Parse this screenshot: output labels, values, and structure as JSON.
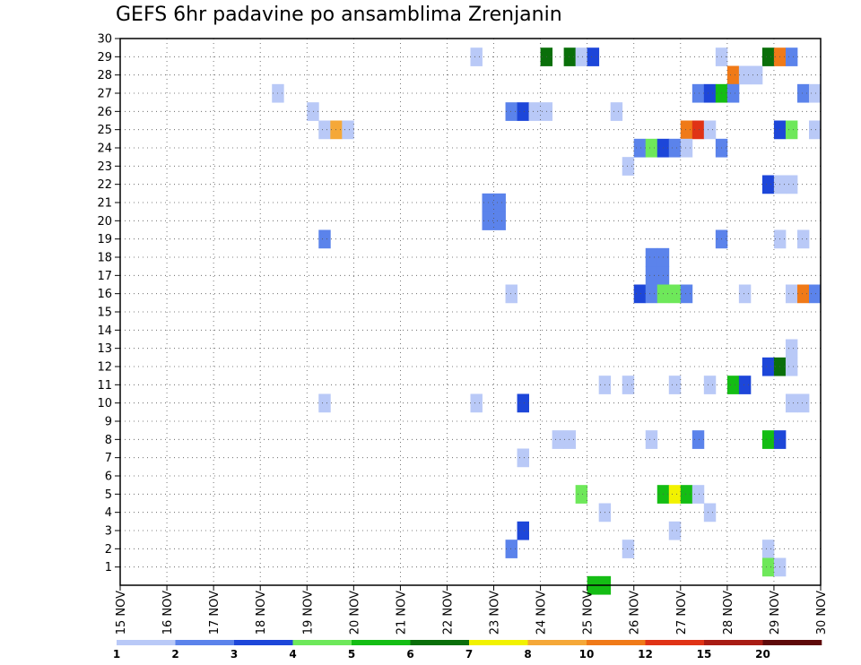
{
  "chart_data": {
    "type": "heatmap",
    "title": "GEFS 6hr padavine po ansamblima Zrenjanin",
    "xlabel": "",
    "ylabel": "",
    "x_tick_labels": [
      "15 NOV",
      "16 NOV",
      "17 NOV",
      "18 NOV",
      "19 NOV",
      "20 NOV",
      "21 NOV",
      "22 NOV",
      "23 NOV",
      "24 NOV",
      "25 NOV",
      "26 NOV",
      "27 NOV",
      "28 NOV",
      "29 NOV",
      "30 NOV"
    ],
    "y_tick_labels": [
      "1",
      "2",
      "3",
      "4",
      "5",
      "6",
      "7",
      "8",
      "9",
      "10",
      "11",
      "12",
      "13",
      "14",
      "15",
      "16",
      "17",
      "18",
      "19",
      "20",
      "21",
      "22",
      "23",
      "24",
      "25",
      "26",
      "27",
      "28",
      "29",
      "30"
    ],
    "x_range_days": [
      15,
      30
    ],
    "y_range_members": [
      0,
      30
    ],
    "time_step_hours": 6,
    "grid": true,
    "colorbar": {
      "labels": [
        "1",
        "2",
        "3",
        "4",
        "5",
        "6",
        "7",
        "8",
        "10",
        "12",
        "15",
        "20"
      ],
      "colors": [
        "#b9c9f7",
        "#5b83eb",
        "#1d46d9",
        "#6ee85a",
        "#14bd14",
        "#0a6f0a",
        "#f2f200",
        "#f5a838",
        "#f07a18",
        "#e03316",
        "#a81c14",
        "#5e0a0a"
      ]
    },
    "cells": [
      {
        "member": 29,
        "day": 22.5,
        "cls": 0
      },
      {
        "member": 29,
        "day": 24.0,
        "cls": 5
      },
      {
        "member": 29,
        "day": 24.5,
        "cls": 5
      },
      {
        "member": 29,
        "day": 24.75,
        "cls": 0
      },
      {
        "member": 29,
        "day": 25.0,
        "cls": 2
      },
      {
        "member": 29,
        "day": 27.75,
        "cls": 0
      },
      {
        "member": 29,
        "day": 28.75,
        "cls": 5
      },
      {
        "member": 29,
        "day": 29.0,
        "cls": 8
      },
      {
        "member": 29,
        "day": 29.25,
        "cls": 1
      },
      {
        "member": 28,
        "day": 28.0,
        "cls": 8
      },
      {
        "member": 28,
        "day": 28.25,
        "cls": 0
      },
      {
        "member": 28,
        "day": 28.5,
        "cls": 0
      },
      {
        "member": 27,
        "day": 18.25,
        "cls": 0
      },
      {
        "member": 27,
        "day": 27.25,
        "cls": 1
      },
      {
        "member": 27,
        "day": 27.5,
        "cls": 2
      },
      {
        "member": 27,
        "day": 27.75,
        "cls": 4
      },
      {
        "member": 27,
        "day": 28.0,
        "cls": 1
      },
      {
        "member": 27,
        "day": 29.5,
        "cls": 1
      },
      {
        "member": 27,
        "day": 29.75,
        "cls": 0
      },
      {
        "member": 26,
        "day": 19.0,
        "cls": 0
      },
      {
        "member": 26,
        "day": 23.25,
        "cls": 1
      },
      {
        "member": 26,
        "day": 23.5,
        "cls": 2
      },
      {
        "member": 26,
        "day": 23.75,
        "cls": 0
      },
      {
        "member": 26,
        "day": 24.0,
        "cls": 0
      },
      {
        "member": 26,
        "day": 25.5,
        "cls": 0
      },
      {
        "member": 25,
        "day": 19.25,
        "cls": 0
      },
      {
        "member": 25,
        "day": 19.5,
        "cls": 7
      },
      {
        "member": 25,
        "day": 19.75,
        "cls": 0
      },
      {
        "member": 25,
        "day": 27.0,
        "cls": 8
      },
      {
        "member": 25,
        "day": 27.25,
        "cls": 9
      },
      {
        "member": 25,
        "day": 27.5,
        "cls": 0
      },
      {
        "member": 25,
        "day": 29.0,
        "cls": 2
      },
      {
        "member": 25,
        "day": 29.25,
        "cls": 3
      },
      {
        "member": 25,
        "day": 29.75,
        "cls": 0
      },
      {
        "member": 24,
        "day": 26.0,
        "cls": 1
      },
      {
        "member": 24,
        "day": 26.25,
        "cls": 3
      },
      {
        "member": 24,
        "day": 26.5,
        "cls": 2
      },
      {
        "member": 24,
        "day": 26.75,
        "cls": 1
      },
      {
        "member": 24,
        "day": 27.0,
        "cls": 0
      },
      {
        "member": 24,
        "day": 27.75,
        "cls": 1
      },
      {
        "member": 23,
        "day": 25.75,
        "cls": 0
      },
      {
        "member": 22,
        "day": 28.75,
        "cls": 2
      },
      {
        "member": 22,
        "day": 29.0,
        "cls": 0
      },
      {
        "member": 22,
        "day": 29.25,
        "cls": 0
      },
      {
        "member": 21,
        "day": 22.75,
        "cls": 1
      },
      {
        "member": 21,
        "day": 23.0,
        "cls": 1
      },
      {
        "member": 20,
        "day": 22.75,
        "cls": 1
      },
      {
        "member": 20,
        "day": 23.0,
        "cls": 1
      },
      {
        "member": 19,
        "day": 19.25,
        "cls": 1
      },
      {
        "member": 19,
        "day": 27.75,
        "cls": 1
      },
      {
        "member": 19,
        "day": 29.0,
        "cls": 0
      },
      {
        "member": 19,
        "day": 29.5,
        "cls": 0
      },
      {
        "member": 18,
        "day": 26.25,
        "cls": 1
      },
      {
        "member": 18,
        "day": 26.5,
        "cls": 1
      },
      {
        "member": 17,
        "day": 26.25,
        "cls": 1
      },
      {
        "member": 17,
        "day": 26.5,
        "cls": 1
      },
      {
        "member": 16,
        "day": 23.25,
        "cls": 0
      },
      {
        "member": 16,
        "day": 26.0,
        "cls": 2
      },
      {
        "member": 16,
        "day": 26.25,
        "cls": 1
      },
      {
        "member": 16,
        "day": 26.5,
        "cls": 3
      },
      {
        "member": 16,
        "day": 26.75,
        "cls": 3
      },
      {
        "member": 16,
        "day": 27.0,
        "cls": 1
      },
      {
        "member": 16,
        "day": 28.25,
        "cls": 0
      },
      {
        "member": 16,
        "day": 29.25,
        "cls": 0
      },
      {
        "member": 16,
        "day": 29.5,
        "cls": 8
      },
      {
        "member": 16,
        "day": 29.75,
        "cls": 1
      },
      {
        "member": 13,
        "day": 29.25,
        "cls": 0
      },
      {
        "member": 12,
        "day": 28.75,
        "cls": 2
      },
      {
        "member": 12,
        "day": 29.0,
        "cls": 5
      },
      {
        "member": 12,
        "day": 29.25,
        "cls": 0
      },
      {
        "member": 11,
        "day": 25.25,
        "cls": 0
      },
      {
        "member": 11,
        "day": 25.75,
        "cls": 0
      },
      {
        "member": 11,
        "day": 26.75,
        "cls": 0
      },
      {
        "member": 11,
        "day": 27.5,
        "cls": 0
      },
      {
        "member": 11,
        "day": 28.0,
        "cls": 4
      },
      {
        "member": 11,
        "day": 28.25,
        "cls": 2
      },
      {
        "member": 10,
        "day": 19.25,
        "cls": 0
      },
      {
        "member": 10,
        "day": 22.5,
        "cls": 0
      },
      {
        "member": 10,
        "day": 23.5,
        "cls": 2
      },
      {
        "member": 10,
        "day": 29.25,
        "cls": 0
      },
      {
        "member": 10,
        "day": 29.5,
        "cls": 0
      },
      {
        "member": 8,
        "day": 24.25,
        "cls": 0
      },
      {
        "member": 8,
        "day": 24.5,
        "cls": 0
      },
      {
        "member": 8,
        "day": 26.25,
        "cls": 0
      },
      {
        "member": 8,
        "day": 27.25,
        "cls": 1
      },
      {
        "member": 8,
        "day": 28.75,
        "cls": 4
      },
      {
        "member": 8,
        "day": 29.0,
        "cls": 2
      },
      {
        "member": 7,
        "day": 23.5,
        "cls": 0
      },
      {
        "member": 5,
        "day": 24.75,
        "cls": 3
      },
      {
        "member": 5,
        "day": 26.5,
        "cls": 4
      },
      {
        "member": 5,
        "day": 26.75,
        "cls": 6
      },
      {
        "member": 5,
        "day": 27.0,
        "cls": 4
      },
      {
        "member": 5,
        "day": 27.25,
        "cls": 0
      },
      {
        "member": 4,
        "day": 25.25,
        "cls": 0
      },
      {
        "member": 4,
        "day": 27.5,
        "cls": 0
      },
      {
        "member": 3,
        "day": 23.5,
        "cls": 2
      },
      {
        "member": 3,
        "day": 26.75,
        "cls": 0
      },
      {
        "member": 2,
        "day": 23.25,
        "cls": 1
      },
      {
        "member": 2,
        "day": 25.75,
        "cls": 0
      },
      {
        "member": 2,
        "day": 28.75,
        "cls": 0
      },
      {
        "member": 1,
        "day": 28.75,
        "cls": 3
      },
      {
        "member": 1,
        "day": 29.0,
        "cls": 0
      },
      {
        "member": 0,
        "day": 25.0,
        "cls": 4
      },
      {
        "member": 0,
        "day": 25.25,
        "cls": 4
      }
    ]
  }
}
